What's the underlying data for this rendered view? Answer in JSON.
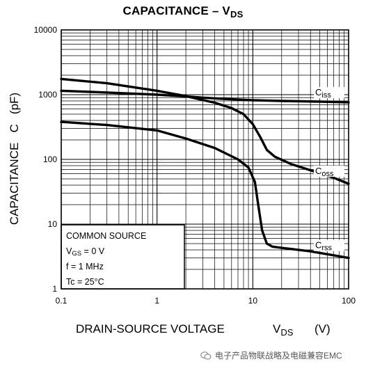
{
  "chart_data": {
    "type": "line",
    "title": "CAPACITANCE – V",
    "title_sub": "DS",
    "xlabel": "DRAIN-SOURCE VOLTAGE",
    "xlabel_var": "V",
    "xlabel_var_sub": "DS",
    "xlabel_unit": "(V)",
    "ylabel": "CAPACITANCE   C   (pF)",
    "x_scale": "log",
    "y_scale": "log",
    "xlim": [
      0.1,
      100
    ],
    "ylim": [
      1,
      10000
    ],
    "x_ticks": [
      "0.1",
      "1",
      "10",
      "100"
    ],
    "y_ticks": [
      "1",
      "10",
      "100",
      "1000",
      "10000"
    ],
    "grid": true,
    "series": [
      {
        "name": "Ciss",
        "name_main": "C",
        "name_sub": "iss",
        "x": [
          0.1,
          0.3,
          1,
          2,
          3,
          5,
          10,
          20,
          50,
          100
        ],
        "y": [
          1150,
          1080,
          1000,
          940,
          900,
          860,
          820,
          800,
          780,
          760
        ]
      },
      {
        "name": "Coss",
        "name_main": "C",
        "name_sub": "oss",
        "x": [
          0.1,
          0.3,
          1,
          2,
          4,
          6,
          8,
          10,
          12,
          14,
          17,
          25,
          40,
          70,
          100
        ],
        "y": [
          1750,
          1500,
          1150,
          950,
          750,
          620,
          500,
          350,
          220,
          140,
          110,
          85,
          68,
          52,
          42
        ]
      },
      {
        "name": "Crss",
        "name_main": "C",
        "name_sub": "rss",
        "x": [
          0.1,
          0.3,
          1,
          2,
          4,
          7,
          9,
          10.5,
          11.5,
          12.5,
          14,
          16,
          20,
          40,
          70,
          100
        ],
        "y": [
          380,
          340,
          280,
          210,
          150,
          100,
          75,
          45,
          18,
          8,
          5,
          4.5,
          4.3,
          3.8,
          3.3,
          3.0
        ]
      }
    ],
    "conditions": {
      "title": "COMMON SOURCE",
      "vgs_main": "V",
      "vgs_sub": "GS",
      "vgs_value": " = 0 V",
      "freq": "f = 1 MHz",
      "tc_main": "Tc",
      "tc_value": " = 25°C"
    }
  },
  "watermark": {
    "text": "电子产品物联战略及电磁兼容EMC",
    "icon": "wechat-icon"
  }
}
